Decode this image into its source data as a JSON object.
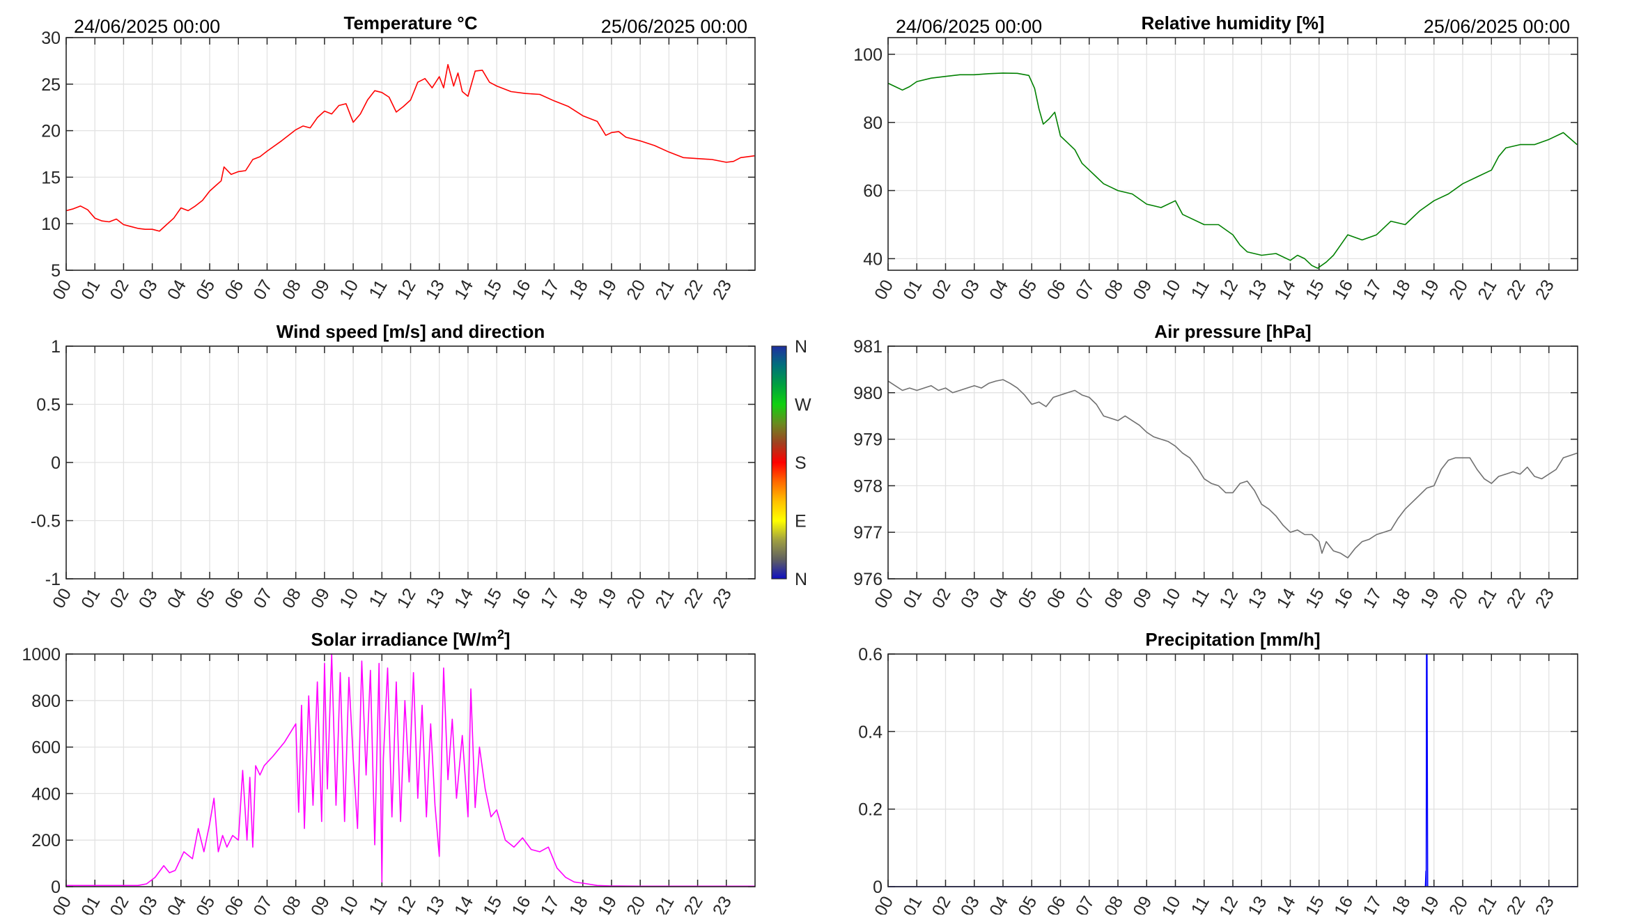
{
  "chart_data": [
    {
      "id": "temperature",
      "type": "line",
      "title": "Temperature °C",
      "date_start": "24/06/2025 00:00",
      "date_end": "25/06/2025 00:00",
      "ylim": [
        5,
        30
      ],
      "yticks": [
        5,
        10,
        15,
        20,
        25,
        30
      ],
      "ytick_labels": [
        "5",
        "10",
        "15",
        "20",
        "25",
        "30"
      ],
      "xlim": [
        0,
        24
      ],
      "xticks": [
        0,
        1,
        2,
        3,
        4,
        5,
        6,
        7,
        8,
        9,
        10,
        11,
        12,
        13,
        14,
        15,
        16,
        17,
        18,
        19,
        20,
        21,
        22,
        23
      ],
      "xtick_labels": [
        "00",
        "01",
        "02",
        "03",
        "04",
        "05",
        "06",
        "07",
        "08",
        "09",
        "10",
        "11",
        "12",
        "13",
        "14",
        "15",
        "16",
        "17",
        "18",
        "19",
        "20",
        "21",
        "22",
        "23"
      ],
      "grid": true,
      "color": "#ff0000",
      "x": [
        0,
        0.25,
        0.5,
        0.75,
        1,
        1.25,
        1.5,
        1.75,
        2,
        2.25,
        2.5,
        2.75,
        3,
        3.25,
        3.5,
        3.75,
        4,
        4.25,
        4.5,
        4.75,
        5,
        5.25,
        5.4,
        5.5,
        5.75,
        6,
        6.25,
        6.5,
        6.75,
        7,
        7.5,
        8,
        8.25,
        8.5,
        8.75,
        9,
        9.25,
        9.5,
        9.75,
        10,
        10.25,
        10.5,
        10.75,
        11,
        11.25,
        11.5,
        11.75,
        12,
        12.25,
        12.5,
        12.75,
        13,
        13.15,
        13.3,
        13.5,
        13.65,
        13.8,
        14,
        14.25,
        14.5,
        14.75,
        15,
        15.5,
        16,
        16.5,
        17,
        17.5,
        18,
        18.5,
        18.8,
        19,
        19.25,
        19.5,
        20,
        20.5,
        21,
        21.5,
        22,
        22.5,
        23,
        23.25,
        23.5,
        23.98
      ],
      "y": [
        11.4,
        11.6,
        11.9,
        11.5,
        10.6,
        10.3,
        10.2,
        10.5,
        9.9,
        9.7,
        9.5,
        9.4,
        9.4,
        9.2,
        9.9,
        10.6,
        11.7,
        11.4,
        11.9,
        12.5,
        13.5,
        14.2,
        14.6,
        16.1,
        15.3,
        15.6,
        15.7,
        16.9,
        17.2,
        17.8,
        18.9,
        20.1,
        20.5,
        20.3,
        21.4,
        22.1,
        21.8,
        22.7,
        22.9,
        20.9,
        21.8,
        23.3,
        24.3,
        24.1,
        23.6,
        22.0,
        22.6,
        23.3,
        25.2,
        25.6,
        24.6,
        25.8,
        24.6,
        27.1,
        24.8,
        26.2,
        24.2,
        23.7,
        26.4,
        26.5,
        25.2,
        24.8,
        24.2,
        24.0,
        23.9,
        23.2,
        22.6,
        21.6,
        21.0,
        19.5,
        19.8,
        19.9,
        19.3,
        18.9,
        18.4,
        17.7,
        17.1,
        17.0,
        16.9,
        16.6,
        16.7,
        17.1,
        17.3
      ]
    },
    {
      "id": "humidity",
      "type": "line",
      "title": "Relative humidity [%]",
      "date_start": "24/06/2025 00:00",
      "date_end": "25/06/2025 00:00",
      "ylim": [
        36.6,
        104.9
      ],
      "yticks": [
        40,
        60,
        80,
        100
      ],
      "ytick_labels": [
        "40",
        "60",
        "80",
        "100"
      ],
      "xlim": [
        0,
        24
      ],
      "xticks": [
        0,
        1,
        2,
        3,
        4,
        5,
        6,
        7,
        8,
        9,
        10,
        11,
        12,
        13,
        14,
        15,
        16,
        17,
        18,
        19,
        20,
        21,
        22,
        23
      ],
      "xtick_labels": [
        "00",
        "01",
        "02",
        "03",
        "04",
        "05",
        "06",
        "07",
        "08",
        "09",
        "10",
        "11",
        "12",
        "13",
        "14",
        "15",
        "16",
        "17",
        "18",
        "19",
        "20",
        "21",
        "22",
        "23"
      ],
      "grid": true,
      "color": "#008000",
      "x": [
        0,
        0.25,
        0.5,
        0.75,
        1,
        1.5,
        2,
        2.5,
        3,
        3.5,
        4,
        4.5,
        4.9,
        5.1,
        5.25,
        5.4,
        5.6,
        5.8,
        6,
        6.25,
        6.5,
        6.75,
        7,
        7.25,
        7.5,
        7.75,
        8,
        8.5,
        9,
        9.5,
        10,
        10.25,
        10.5,
        11,
        11.5,
        12,
        12.25,
        12.5,
        13,
        13.5,
        14,
        14.25,
        14.5,
        14.75,
        14.95,
        15.25,
        15.5,
        15.75,
        16,
        16.5,
        17,
        17.5,
        18,
        18.5,
        19,
        19.5,
        20,
        20.5,
        21,
        21.25,
        21.5,
        22,
        22.5,
        23,
        23.5,
        23.98
      ],
      "y": [
        91.5,
        90.5,
        89.5,
        90.5,
        92,
        93,
        93.5,
        94,
        94,
        94.3,
        94.5,
        94.4,
        93.8,
        90,
        84,
        79.5,
        81,
        83,
        76,
        74,
        72,
        68,
        66,
        64,
        62,
        61,
        60,
        59,
        56,
        55,
        57,
        53,
        52,
        50,
        50,
        47,
        44,
        42,
        41,
        41.5,
        39.5,
        41,
        40,
        38,
        37.2,
        39,
        41,
        44,
        47,
        45.5,
        47,
        51,
        50,
        54,
        57,
        59,
        62,
        64,
        66,
        70,
        72.5,
        73.5,
        73.5,
        75,
        77,
        73.5
      ]
    },
    {
      "id": "wind",
      "type": "line",
      "title": "Wind speed [m/s] and direction",
      "ylim": [
        -1,
        1
      ],
      "yticks": [
        -1,
        -0.5,
        0,
        0.5,
        1
      ],
      "ytick_labels": [
        "-1",
        "-0.5",
        "0",
        "0.5",
        "1"
      ],
      "xlim": [
        0,
        24
      ],
      "xticks": [
        0,
        1,
        2,
        3,
        4,
        5,
        6,
        7,
        8,
        9,
        10,
        11,
        12,
        13,
        14,
        15,
        16,
        17,
        18,
        19,
        20,
        21,
        22,
        23
      ],
      "xtick_labels": [
        "00",
        "01",
        "02",
        "03",
        "04",
        "05",
        "06",
        "07",
        "08",
        "09",
        "10",
        "11",
        "12",
        "13",
        "14",
        "15",
        "16",
        "17",
        "18",
        "19",
        "20",
        "21",
        "22",
        "23"
      ],
      "grid": true,
      "color": "#000000",
      "x": [],
      "y": [],
      "colorbar": {
        "labels": [
          "N",
          "W",
          "S",
          "E",
          "N"
        ],
        "colors": [
          "#1f2fa0",
          "#00707a",
          "#00a040",
          "#10d010",
          "#6a8a20",
          "#a04020",
          "#ff0000",
          "#ff6a00",
          "#ffc000",
          "#ffff00",
          "#a0a040",
          "#606060",
          "#1010c0"
        ]
      }
    },
    {
      "id": "pressure",
      "type": "line",
      "title": "Air pressure [hPa]",
      "ylim": [
        976,
        981
      ],
      "yticks": [
        976,
        977,
        978,
        979,
        980,
        981
      ],
      "ytick_labels": [
        "976",
        "977",
        "978",
        "979",
        "980",
        "981"
      ],
      "xlim": [
        0,
        24
      ],
      "xticks": [
        0,
        1,
        2,
        3,
        4,
        5,
        6,
        7,
        8,
        9,
        10,
        11,
        12,
        13,
        14,
        15,
        16,
        17,
        18,
        19,
        20,
        21,
        22,
        23
      ],
      "xtick_labels": [
        "00",
        "01",
        "02",
        "03",
        "04",
        "05",
        "06",
        "07",
        "08",
        "09",
        "10",
        "11",
        "12",
        "13",
        "14",
        "15",
        "16",
        "17",
        "18",
        "19",
        "20",
        "21",
        "22",
        "23"
      ],
      "grid": true,
      "color": "#707070",
      "x": [
        0,
        0.25,
        0.5,
        0.75,
        1,
        1.25,
        1.5,
        1.75,
        2,
        2.25,
        2.5,
        2.75,
        3,
        3.25,
        3.5,
        3.75,
        4,
        4.25,
        4.5,
        4.75,
        5,
        5.25,
        5.5,
        5.75,
        6,
        6.25,
        6.5,
        6.75,
        7,
        7.25,
        7.5,
        7.75,
        8,
        8.25,
        8.5,
        8.75,
        9,
        9.25,
        9.5,
        9.75,
        10,
        10.25,
        10.5,
        10.75,
        11,
        11.25,
        11.5,
        11.75,
        12,
        12.25,
        12.5,
        12.75,
        13,
        13.25,
        13.5,
        13.75,
        14,
        14.25,
        14.5,
        14.75,
        15,
        15.1,
        15.25,
        15.5,
        15.75,
        16,
        16.25,
        16.5,
        16.75,
        17,
        17.25,
        17.5,
        17.75,
        18,
        18.25,
        18.5,
        18.75,
        19,
        19.25,
        19.5,
        19.75,
        20,
        20.25,
        20.5,
        20.75,
        21,
        21.25,
        21.5,
        21.75,
        22,
        22.25,
        22.5,
        22.75,
        23,
        23.25,
        23.5,
        23.98
      ],
      "y": [
        980.25,
        980.15,
        980.05,
        980.1,
        980.05,
        980.1,
        980.15,
        980.05,
        980.1,
        980.0,
        980.05,
        980.1,
        980.15,
        980.1,
        980.2,
        980.25,
        980.28,
        980.2,
        980.1,
        979.95,
        979.75,
        979.8,
        979.7,
        979.9,
        979.95,
        980.0,
        980.05,
        979.95,
        979.9,
        979.75,
        979.5,
        979.45,
        979.4,
        979.5,
        979.4,
        979.3,
        979.15,
        979.05,
        979.0,
        978.95,
        978.85,
        978.7,
        978.6,
        978.4,
        978.15,
        978.05,
        978.0,
        977.85,
        977.85,
        978.05,
        978.1,
        977.9,
        977.6,
        977.5,
        977.35,
        977.15,
        977.0,
        977.05,
        976.95,
        976.95,
        976.8,
        976.55,
        976.8,
        976.6,
        976.55,
        976.45,
        976.65,
        976.8,
        976.85,
        976.95,
        977.0,
        977.05,
        977.3,
        977.5,
        977.65,
        977.8,
        977.95,
        978.0,
        978.35,
        978.55,
        978.6,
        978.6,
        978.6,
        978.35,
        978.15,
        978.05,
        978.2,
        978.25,
        978.3,
        978.25,
        978.4,
        978.2,
        978.15,
        978.25,
        978.35,
        978.6,
        978.7
      ]
    },
    {
      "id": "solar",
      "type": "line",
      "title": "Solar irradiance [W/m",
      "title_sup": "2",
      "title_end": "]",
      "ylim": [
        0,
        1000
      ],
      "yticks": [
        0,
        200,
        400,
        600,
        800,
        1000
      ],
      "ytick_labels": [
        "0",
        "200",
        "400",
        "600",
        "800",
        "1000"
      ],
      "xlim": [
        0,
        24
      ],
      "xticks": [
        0,
        1,
        2,
        3,
        4,
        5,
        6,
        7,
        8,
        9,
        10,
        11,
        12,
        13,
        14,
        15,
        16,
        17,
        18,
        19,
        20,
        21,
        22,
        23
      ],
      "xtick_labels": [
        "00",
        "01",
        "02",
        "03",
        "04",
        "05",
        "06",
        "07",
        "08",
        "09",
        "10",
        "11",
        "12",
        "13",
        "14",
        "15",
        "16",
        "17",
        "18",
        "19",
        "20",
        "21",
        "22",
        "23"
      ],
      "grid": true,
      "color": "#ff00ff",
      "x": [
        0,
        2.5,
        2.8,
        3.1,
        3.4,
        3.6,
        3.8,
        4.1,
        4.4,
        4.6,
        4.8,
        5.0,
        5.15,
        5.3,
        5.45,
        5.6,
        5.8,
        6.0,
        6.15,
        6.3,
        6.4,
        6.5,
        6.6,
        6.75,
        6.9,
        7.2,
        7.6,
        8.0,
        8.1,
        8.2,
        8.3,
        8.45,
        8.6,
        8.75,
        8.9,
        9.0,
        9.1,
        9.25,
        9.4,
        9.55,
        9.7,
        9.85,
        10.0,
        10.15,
        10.3,
        10.45,
        10.6,
        10.75,
        10.9,
        11.0,
        11.05,
        11.2,
        11.35,
        11.5,
        11.65,
        11.8,
        11.95,
        12.1,
        12.25,
        12.4,
        12.55,
        12.7,
        12.85,
        13.0,
        13.15,
        13.3,
        13.45,
        13.6,
        13.8,
        14.0,
        14.1,
        14.25,
        14.4,
        14.6,
        14.8,
        15.0,
        15.3,
        15.6,
        15.9,
        16.2,
        16.5,
        16.8,
        17.1,
        17.4,
        17.7,
        18.0,
        18.5,
        19.0,
        20.0,
        24.0
      ],
      "y": [
        5,
        5,
        12,
        40,
        90,
        60,
        70,
        150,
        120,
        250,
        150,
        270,
        380,
        150,
        220,
        170,
        220,
        200,
        500,
        200,
        470,
        170,
        520,
        480,
        520,
        560,
        620,
        700,
        320,
        780,
        250,
        820,
        350,
        880,
        280,
        960,
        420,
        1000,
        350,
        920,
        280,
        900,
        550,
        250,
        970,
        480,
        930,
        180,
        960,
        20,
        550,
        940,
        300,
        880,
        280,
        800,
        450,
        920,
        380,
        780,
        300,
        700,
        350,
        130,
        940,
        460,
        720,
        380,
        650,
        300,
        850,
        340,
        600,
        420,
        300,
        330,
        200,
        170,
        210,
        160,
        150,
        170,
        80,
        40,
        20,
        15,
        5,
        3,
        2,
        2
      ]
    },
    {
      "id": "precipitation",
      "type": "line",
      "title": "Precipitation [mm/h]",
      "ylim": [
        0,
        0.6
      ],
      "yticks": [
        0,
        0.2,
        0.4,
        0.6
      ],
      "ytick_labels": [
        "0",
        "0.2",
        "0.4",
        "0.6"
      ],
      "xlim": [
        0,
        24
      ],
      "xticks": [
        0,
        1,
        2,
        3,
        4,
        5,
        6,
        7,
        8,
        9,
        10,
        11,
        12,
        13,
        14,
        15,
        16,
        17,
        18,
        19,
        20,
        21,
        22,
        23
      ],
      "xtick_labels": [
        "00",
        "01",
        "02",
        "03",
        "04",
        "05",
        "06",
        "07",
        "08",
        "09",
        "10",
        "11",
        "12",
        "13",
        "14",
        "15",
        "16",
        "17",
        "18",
        "19",
        "20",
        "21",
        "22",
        "23"
      ],
      "grid": true,
      "color": "#0000ff",
      "x": [
        0,
        18.7,
        18.72,
        18.73,
        18.74,
        18.76,
        18.78,
        23.98
      ],
      "y": [
        0,
        0,
        0.04,
        0,
        0.6,
        0.6,
        0,
        0
      ]
    }
  ]
}
